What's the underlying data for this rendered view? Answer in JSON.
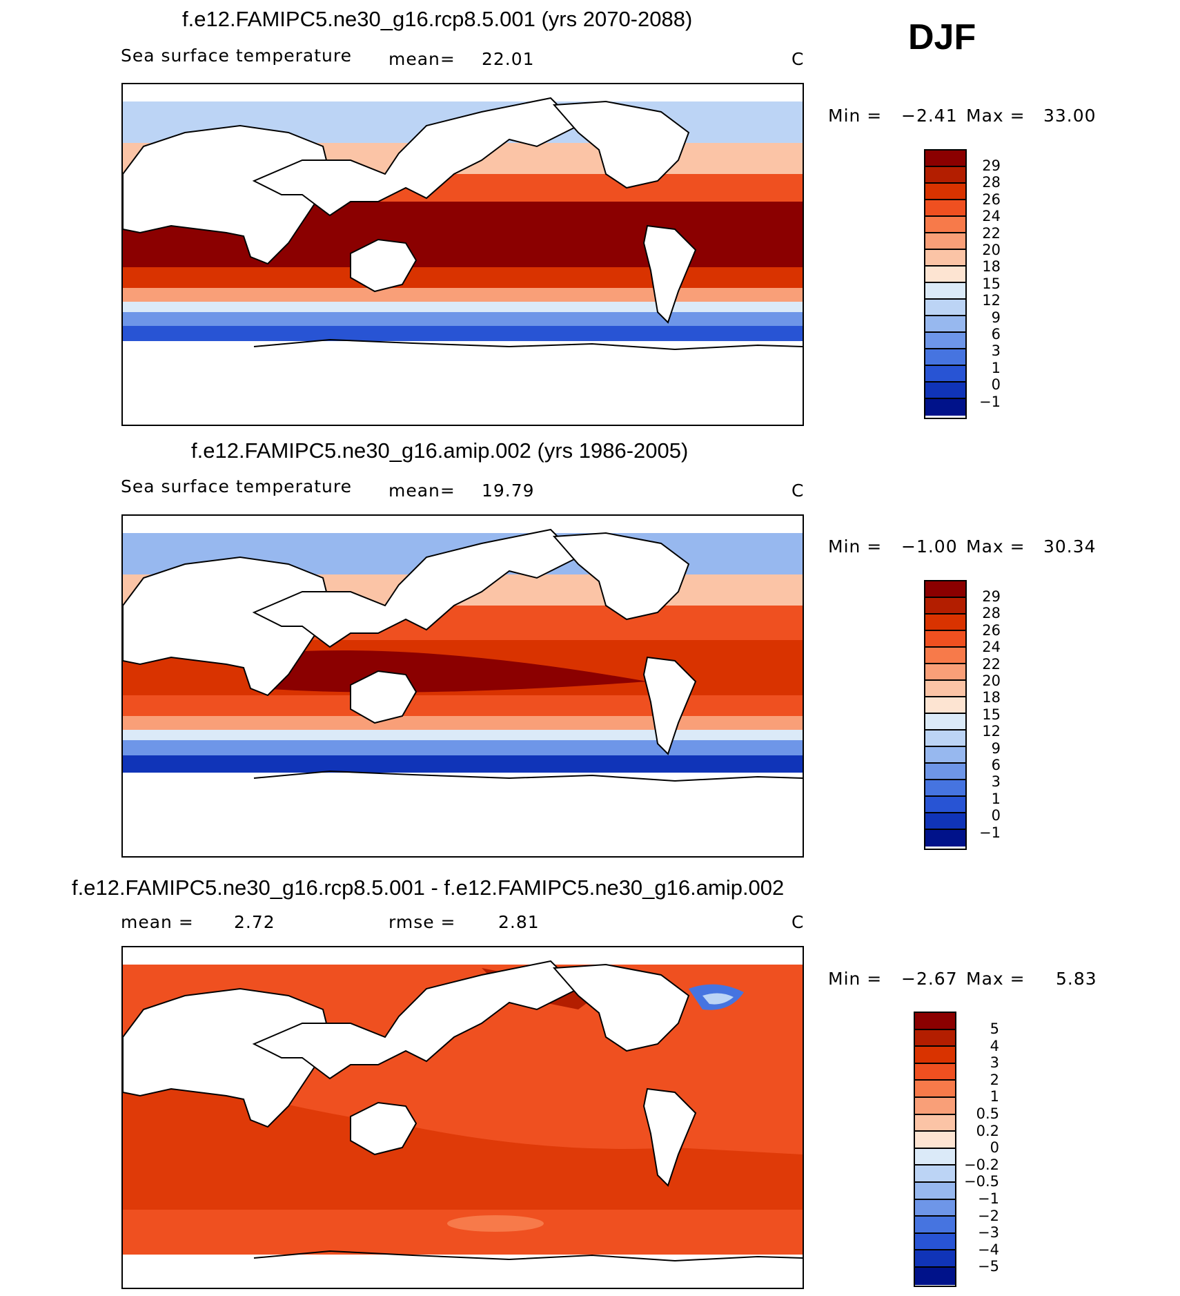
{
  "season": "DJF",
  "panels": [
    {
      "title": "f.e12.FAMIPC5.ne30_g16.rcp8.5.001 (yrs 2070-2088)",
      "variable": "Sea surface temperature",
      "mean_label": "mean=",
      "mean": "22.01",
      "units": "C",
      "min_label": "Min =",
      "min": "−2.41",
      "max_label": "Max =",
      "max": "33.00",
      "colorbar": {
        "labels": [
          "29",
          "28",
          "26",
          "24",
          "22",
          "20",
          "18",
          "15",
          "12",
          "9",
          "6",
          "3",
          "1",
          "0",
          "−1"
        ],
        "colors": [
          "#8b0000",
          "#b31e00",
          "#d93300",
          "#ef5020",
          "#f77a4a",
          "#f99f78",
          "#fbc4a6",
          "#fde4d2",
          "#dbeaf8",
          "#bcd4f5",
          "#97b8ef",
          "#6e96e8",
          "#4674e0",
          "#2854d4",
          "#1034b8",
          "#00128a"
        ]
      }
    },
    {
      "title": "f.e12.FAMIPC5.ne30_g16.amip.002 (yrs 1986-2005)",
      "variable": "Sea surface temperature",
      "mean_label": "mean=",
      "mean": "19.79",
      "units": "C",
      "min_label": "Min =",
      "min": "−1.00",
      "max_label": "Max =",
      "max": "30.34",
      "colorbar": {
        "labels": [
          "29",
          "28",
          "26",
          "24",
          "22",
          "20",
          "18",
          "15",
          "12",
          "9",
          "6",
          "3",
          "1",
          "0",
          "−1"
        ],
        "colors": [
          "#8b0000",
          "#b31e00",
          "#d93300",
          "#ef5020",
          "#f77a4a",
          "#f99f78",
          "#fbc4a6",
          "#fde4d2",
          "#dbeaf8",
          "#bcd4f5",
          "#97b8ef",
          "#6e96e8",
          "#4674e0",
          "#2854d4",
          "#1034b8",
          "#00128a"
        ]
      }
    },
    {
      "title": "f.e12.FAMIPC5.ne30_g16.rcp8.5.001 - f.e12.FAMIPC5.ne30_g16.amip.002",
      "mean_label": "mean =",
      "mean": "2.72",
      "rmse_label": "rmse =",
      "rmse": "2.81",
      "units": "C",
      "min_label": "Min =",
      "min": "−2.67",
      "max_label": "Max =",
      "max": "5.83",
      "colorbar": {
        "labels": [
          "5",
          "4",
          "3",
          "2",
          "1",
          "0.5",
          "0.2",
          "0",
          "−0.2",
          "−0.5",
          "−1",
          "−2",
          "−3",
          "−4",
          "−5"
        ],
        "colors": [
          "#8b0000",
          "#b31e00",
          "#d93300",
          "#ef5020",
          "#f77a4a",
          "#f99f78",
          "#fbc4a6",
          "#fde4d2",
          "#dbeaf8",
          "#bcd4f5",
          "#97b8ef",
          "#6e96e8",
          "#4674e0",
          "#2854d4",
          "#1034b8",
          "#00128a"
        ]
      }
    }
  ]
}
